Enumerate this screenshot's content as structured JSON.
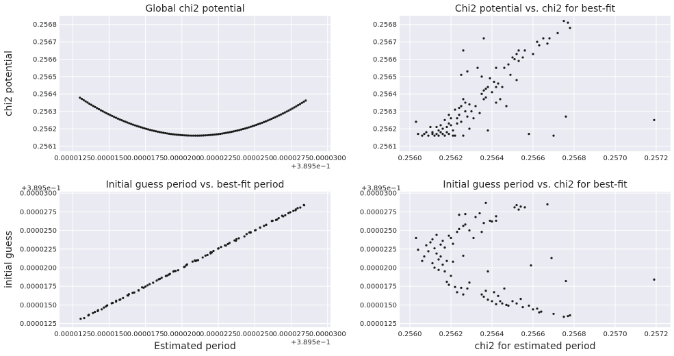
{
  "chart_data": [
    {
      "type": "scatter",
      "title": "Global chi2 potential",
      "xlabel": "",
      "ylabel": "chi2 potential",
      "x_offset_label": "+3.895e−1",
      "y_offset_label": "",
      "x_ticks": [
        "0.0000125",
        "0.0000150",
        "0.0000175",
        "0.0000200",
        "0.0000225",
        "0.0000250",
        "0.0000275",
        "0.0000300"
      ],
      "y_ticks": [
        "0.2561",
        "0.2562",
        "0.2563",
        "0.2564",
        "0.2565",
        "0.2566",
        "0.2567",
        "0.2568"
      ],
      "xlim": [
        1.16e-05,
        3.02e-05
      ],
      "ylim": [
        0.25607,
        0.25685
      ],
      "grid": true,
      "curve": {
        "x_start": 1.3e-05,
        "x_end": 2.85e-05,
        "n": 120,
        "x_min": 2.09e-05,
        "y_min": 0.25616,
        "a": 3500000.0,
        "b": 1000000.0
      }
    },
    {
      "type": "scatter",
      "title": "Chi2 potential vs. chi2 for best-fit",
      "xlabel": "",
      "ylabel": "",
      "x_offset_label": "",
      "y_offset_label": "",
      "x_ticks": [
        "0.2560",
        "0.2562",
        "0.2564",
        "0.2566",
        "0.2568",
        "0.2570",
        "0.2572"
      ],
      "y_ticks": [
        "0.2561",
        "0.2562",
        "0.2563",
        "0.2564",
        "0.2565",
        "0.2566",
        "0.2567",
        "0.2568"
      ],
      "xlim": [
        0.25595,
        0.25727
      ],
      "ylim": [
        0.25607,
        0.25685
      ],
      "grid": true,
      "points": [
        [
          0.25603,
          0.25624
        ],
        [
          0.25604,
          0.25617
        ],
        [
          0.25606,
          0.25616
        ],
        [
          0.25607,
          0.25617
        ],
        [
          0.25608,
          0.25618
        ],
        [
          0.25609,
          0.25616
        ],
        [
          0.2561,
          0.25621
        ],
        [
          0.25611,
          0.25618
        ],
        [
          0.25611,
          0.25617
        ],
        [
          0.25612,
          0.25616
        ],
        [
          0.25613,
          0.25617
        ],
        [
          0.25613,
          0.25621
        ],
        [
          0.25614,
          0.25619
        ],
        [
          0.25614,
          0.25616
        ],
        [
          0.25615,
          0.25622
        ],
        [
          0.25615,
          0.25618
        ],
        [
          0.25616,
          0.25617
        ],
        [
          0.25616,
          0.2562
        ],
        [
          0.25617,
          0.25625
        ],
        [
          0.25617,
          0.25616
        ],
        [
          0.25618,
          0.25621
        ],
        [
          0.25618,
          0.25618
        ],
        [
          0.25619,
          0.25623
        ],
        [
          0.25619,
          0.25628
        ],
        [
          0.25619,
          0.25617
        ],
        [
          0.2562,
          0.25626
        ],
        [
          0.2562,
          0.25622
        ],
        [
          0.25621,
          0.25619
        ],
        [
          0.25621,
          0.25616
        ],
        [
          0.25622,
          0.25631
        ],
        [
          0.25622,
          0.25616
        ],
        [
          0.25623,
          0.25626
        ],
        [
          0.25623,
          0.25623
        ],
        [
          0.25624,
          0.25632
        ],
        [
          0.25624,
          0.25628
        ],
        [
          0.25625,
          0.25633
        ],
        [
          0.25625,
          0.25624
        ],
        [
          0.25625,
          0.25651
        ],
        [
          0.25626,
          0.25637
        ],
        [
          0.25626,
          0.25616
        ],
        [
          0.25627,
          0.2563
        ],
        [
          0.25627,
          0.25635
        ],
        [
          0.25628,
          0.25653
        ],
        [
          0.25628,
          0.25627
        ],
        [
          0.25629,
          0.25634
        ],
        [
          0.2563,
          0.2563
        ],
        [
          0.25631,
          0.25626
        ],
        [
          0.25632,
          0.25633
        ],
        [
          0.25633,
          0.25655
        ],
        [
          0.25634,
          0.25629
        ],
        [
          0.25635,
          0.2564
        ],
        [
          0.25635,
          0.2565
        ],
        [
          0.25636,
          0.25642
        ],
        [
          0.25636,
          0.25637
        ],
        [
          0.25637,
          0.25643
        ],
        [
          0.25637,
          0.25638
        ],
        [
          0.25638,
          0.25644
        ],
        [
          0.25638,
          0.25619
        ],
        [
          0.25639,
          0.25649
        ],
        [
          0.2564,
          0.25641
        ],
        [
          0.25641,
          0.25647
        ],
        [
          0.25642,
          0.25644
        ],
        [
          0.25642,
          0.25635
        ],
        [
          0.25642,
          0.25655
        ],
        [
          0.25643,
          0.25646
        ],
        [
          0.25644,
          0.25637
        ],
        [
          0.25645,
          0.25644
        ],
        [
          0.25646,
          0.25655
        ],
        [
          0.25647,
          0.25633
        ],
        [
          0.25648,
          0.25657
        ],
        [
          0.25649,
          0.25651
        ],
        [
          0.2565,
          0.25661
        ],
        [
          0.25651,
          0.2566
        ],
        [
          0.25652,
          0.25663
        ],
        [
          0.25652,
          0.25648
        ],
        [
          0.25653,
          0.25659
        ],
        [
          0.25653,
          0.25665
        ],
        [
          0.25655,
          0.25661
        ],
        [
          0.25656,
          0.25665
        ],
        [
          0.25658,
          0.25617
        ],
        [
          0.2566,
          0.25663
        ],
        [
          0.25662,
          0.2567
        ],
        [
          0.25663,
          0.25668
        ],
        [
          0.25665,
          0.25672
        ],
        [
          0.25667,
          0.25669
        ],
        [
          0.25668,
          0.25672
        ],
        [
          0.2567,
          0.25616
        ],
        [
          0.25672,
          0.25675
        ],
        [
          0.25675,
          0.25682
        ],
        [
          0.25676,
          0.25627
        ],
        [
          0.25677,
          0.25681
        ],
        [
          0.25678,
          0.25678
        ],
        [
          0.25719,
          0.25625
        ],
        [
          0.25636,
          0.25672
        ],
        [
          0.25626,
          0.25665
        ],
        [
          0.25629,
          0.2562
        ]
      ]
    },
    {
      "type": "scatter",
      "title": "Initial guess period vs. best-fit period",
      "xlabel": "Estimated period",
      "ylabel": "initial guess",
      "x_offset_label": "+3.895e−1",
      "y_offset_label": "+3.895e−1",
      "x_ticks": [
        "0.0000125",
        "0.0000150",
        "0.0000175",
        "0.0000200",
        "0.0000225",
        "0.0000250",
        "0.0000275",
        "0.0000300"
      ],
      "y_ticks": [
        "0.0000125",
        "0.0000150",
        "0.0000175",
        "0.0000200",
        "0.0000225",
        "0.0000250",
        "0.0000275",
        "0.0000300"
      ],
      "xlim": [
        1.16e-05,
        3.02e-05
      ],
      "ylim": [
        1.2e-05,
        3.02e-05
      ],
      "grid": true,
      "line": {
        "x_start": 1.32e-05,
        "x_end": 2.85e-05,
        "n": 100,
        "jitter": 2e-07
      }
    },
    {
      "type": "scatter",
      "title": "Initial guess period vs. chi2 for best-fit",
      "xlabel": "chi2 for estimated period",
      "ylabel": "",
      "x_offset_label": "",
      "y_offset_label": "+3.895e−1",
      "x_ticks": [
        "0.2560",
        "0.2562",
        "0.2564",
        "0.2566",
        "0.2568",
        "0.2570",
        "0.2572"
      ],
      "y_ticks": [
        "0.0000125",
        "0.0000150",
        "0.0000175",
        "0.0000200",
        "0.0000225",
        "0.0000250",
        "0.0000275",
        "0.0000300"
      ],
      "xlim": [
        0.25595,
        0.25727
      ],
      "ylim": [
        1.2e-05,
        3.02e-05
      ],
      "grid": true,
      "points": [
        [
          0.25603,
          2.4e-05
        ],
        [
          0.25604,
          2.24e-05
        ],
        [
          0.25606,
          2.09e-05
        ],
        [
          0.25607,
          2.15e-05
        ],
        [
          0.25608,
          2.3e-05
        ],
        [
          0.25609,
          2.22e-05
        ],
        [
          0.2561,
          2.34e-05
        ],
        [
          0.25611,
          2.06e-05
        ],
        [
          0.25611,
          2.38e-05
        ],
        [
          0.25612,
          2e-05
        ],
        [
          0.25612,
          2.26e-05
        ],
        [
          0.25613,
          2.19e-05
        ],
        [
          0.25613,
          2.44e-05
        ],
        [
          0.25614,
          2.11e-05
        ],
        [
          0.25614,
          1.97e-05
        ],
        [
          0.25615,
          2.31e-05
        ],
        [
          0.25615,
          2.15e-05
        ],
        [
          0.25616,
          2.04e-05
        ],
        [
          0.25616,
          2.36e-05
        ],
        [
          0.25617,
          1.95e-05
        ],
        [
          0.25617,
          2.27e-05
        ],
        [
          0.25618,
          1.81e-05
        ],
        [
          0.25618,
          2.09e-05
        ],
        [
          0.25619,
          1.77e-05
        ],
        [
          0.25619,
          2.43e-05
        ],
        [
          0.2562,
          2.4e-05
        ],
        [
          0.2562,
          1.89e-05
        ],
        [
          0.25621,
          2.08e-05
        ],
        [
          0.25621,
          2.32e-05
        ],
        [
          0.25622,
          1.74e-05
        ],
        [
          0.25623,
          2.48e-05
        ],
        [
          0.25623,
          1.67e-05
        ],
        [
          0.25624,
          2.71e-05
        ],
        [
          0.25624,
          2.52e-05
        ],
        [
          0.25625,
          1.73e-05
        ],
        [
          0.25626,
          2.56e-05
        ],
        [
          0.25626,
          1.64e-05
        ],
        [
          0.25627,
          2.72e-05
        ],
        [
          0.25627,
          2.58e-05
        ],
        [
          0.25628,
          1.72e-05
        ],
        [
          0.25629,
          2.5e-05
        ],
        [
          0.25632,
          2.68e-05
        ],
        [
          0.25634,
          2.73e-05
        ],
        [
          0.25635,
          2.48e-05
        ],
        [
          0.25635,
          1.64e-05
        ],
        [
          0.25636,
          1.61e-05
        ],
        [
          0.25636,
          2.6e-05
        ],
        [
          0.25637,
          2.87e-05
        ],
        [
          0.25637,
          1.69e-05
        ],
        [
          0.25638,
          1.57e-05
        ],
        [
          0.25638,
          1.95e-05
        ],
        [
          0.25639,
          2.63e-05
        ],
        [
          0.2564,
          1.55e-05
        ],
        [
          0.2564,
          2.62e-05
        ],
        [
          0.25641,
          1.67e-05
        ],
        [
          0.25642,
          2.69e-05
        ],
        [
          0.25642,
          1.51e-05
        ],
        [
          0.25642,
          2.63e-05
        ],
        [
          0.25643,
          1.62e-05
        ],
        [
          0.25644,
          1.55e-05
        ],
        [
          0.25645,
          1.52e-05
        ],
        [
          0.25646,
          1.72e-05
        ],
        [
          0.25647,
          1.5e-05
        ],
        [
          0.25648,
          1.49e-05
        ],
        [
          0.2565,
          1.55e-05
        ],
        [
          0.25651,
          2.81e-05
        ],
        [
          0.25652,
          1.52e-05
        ],
        [
          0.25652,
          2.84e-05
        ],
        [
          0.25653,
          2.78e-05
        ],
        [
          0.25654,
          1.58e-05
        ],
        [
          0.25654,
          2.82e-05
        ],
        [
          0.25655,
          1.47e-05
        ],
        [
          0.25656,
          2.81e-05
        ],
        [
          0.25658,
          1.49e-05
        ],
        [
          0.25659,
          2.03e-05
        ],
        [
          0.2566,
          1.44e-05
        ],
        [
          0.25662,
          1.45e-05
        ],
        [
          0.25663,
          1.4e-05
        ],
        [
          0.25664,
          1.41e-05
        ],
        [
          0.25667,
          2.85e-05
        ],
        [
          0.25669,
          2.13e-05
        ],
        [
          0.2567,
          1.38e-05
        ],
        [
          0.25675,
          1.34e-05
        ],
        [
          0.25676,
          1.82e-05
        ],
        [
          0.25677,
          1.35e-05
        ],
        [
          0.25678,
          1.36e-05
        ],
        [
          0.25719,
          1.84e-05
        ],
        [
          0.25626,
          2.16e-05
        ],
        [
          0.25629,
          1.8e-05
        ],
        [
          0.25631,
          2.4e-05
        ]
      ]
    }
  ]
}
